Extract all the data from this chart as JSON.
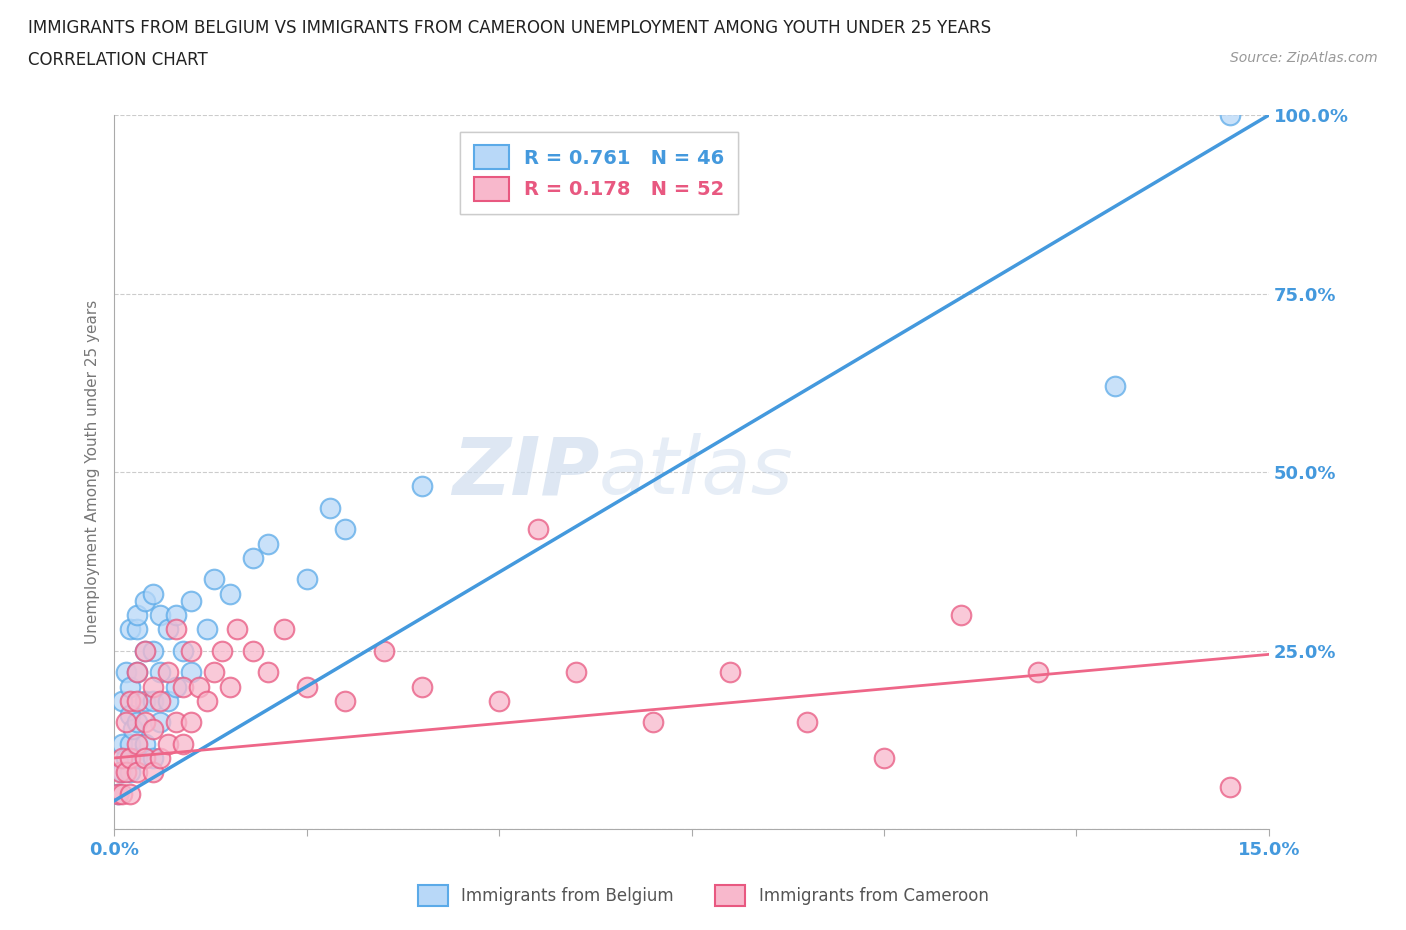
{
  "title_line1": "IMMIGRANTS FROM BELGIUM VS IMMIGRANTS FROM CAMEROON UNEMPLOYMENT AMONG YOUTH UNDER 25 YEARS",
  "title_line2": "CORRELATION CHART",
  "source_text": "Source: ZipAtlas.com",
  "ylabel": "Unemployment Among Youth under 25 years",
  "xlim": [
    0.0,
    0.15
  ],
  "ylim": [
    0.0,
    1.0
  ],
  "xticks": [
    0.0,
    0.025,
    0.05,
    0.075,
    0.1,
    0.125,
    0.15
  ],
  "xtick_labels": [
    "0.0%",
    "",
    "",
    "",
    "",
    "",
    "15.0%"
  ],
  "yticks": [
    0.0,
    0.25,
    0.5,
    0.75,
    1.0
  ],
  "ytick_labels": [
    "",
    "25.0%",
    "50.0%",
    "75.0%",
    "100.0%"
  ],
  "belgium_fill_color": "#b8d8f8",
  "cameroon_fill_color": "#f8b8cc",
  "belgium_edge_color": "#5baae8",
  "cameroon_edge_color": "#e85880",
  "belgium_line_color": "#4499dd",
  "cameroon_line_color": "#ee6688",
  "belgium_R": 0.761,
  "belgium_N": 46,
  "cameroon_R": 0.178,
  "cameroon_N": 52,
  "watermark_part1": "ZIP",
  "watermark_part2": "atlas",
  "legend_label_belgium": "Immigrants from Belgium",
  "legend_label_cameroon": "Immigrants from Cameroon",
  "belgium_line_x0": 0.0,
  "belgium_line_y0": 0.04,
  "belgium_line_x1": 0.15,
  "belgium_line_y1": 1.0,
  "cameroon_line_x0": 0.0,
  "cameroon_line_y0": 0.1,
  "cameroon_line_x1": 0.15,
  "cameroon_line_y1": 0.245,
  "belgium_scatter_x": [
    0.0005,
    0.001,
    0.001,
    0.001,
    0.0015,
    0.0015,
    0.002,
    0.002,
    0.002,
    0.002,
    0.002,
    0.0025,
    0.003,
    0.003,
    0.003,
    0.003,
    0.003,
    0.004,
    0.004,
    0.004,
    0.004,
    0.005,
    0.005,
    0.005,
    0.005,
    0.006,
    0.006,
    0.006,
    0.007,
    0.007,
    0.008,
    0.008,
    0.009,
    0.01,
    0.01,
    0.012,
    0.013,
    0.015,
    0.018,
    0.02,
    0.025,
    0.028,
    0.03,
    0.04,
    0.13,
    0.145
  ],
  "belgium_scatter_y": [
    0.05,
    0.08,
    0.12,
    0.18,
    0.1,
    0.22,
    0.08,
    0.12,
    0.16,
    0.2,
    0.28,
    0.14,
    0.1,
    0.15,
    0.22,
    0.28,
    0.3,
    0.12,
    0.18,
    0.25,
    0.32,
    0.1,
    0.18,
    0.25,
    0.33,
    0.15,
    0.22,
    0.3,
    0.18,
    0.28,
    0.2,
    0.3,
    0.25,
    0.22,
    0.32,
    0.28,
    0.35,
    0.33,
    0.38,
    0.4,
    0.35,
    0.45,
    0.42,
    0.48,
    0.62,
    1.0
  ],
  "cameroon_scatter_x": [
    0.0005,
    0.0008,
    0.001,
    0.001,
    0.0015,
    0.0015,
    0.002,
    0.002,
    0.002,
    0.003,
    0.003,
    0.003,
    0.003,
    0.004,
    0.004,
    0.004,
    0.005,
    0.005,
    0.005,
    0.006,
    0.006,
    0.007,
    0.007,
    0.008,
    0.008,
    0.009,
    0.009,
    0.01,
    0.01,
    0.011,
    0.012,
    0.013,
    0.014,
    0.015,
    0.016,
    0.018,
    0.02,
    0.022,
    0.025,
    0.03,
    0.035,
    0.04,
    0.05,
    0.055,
    0.06,
    0.07,
    0.08,
    0.09,
    0.1,
    0.11,
    0.12,
    0.145
  ],
  "cameroon_scatter_y": [
    0.05,
    0.08,
    0.05,
    0.1,
    0.08,
    0.15,
    0.05,
    0.1,
    0.18,
    0.08,
    0.12,
    0.18,
    0.22,
    0.1,
    0.15,
    0.25,
    0.08,
    0.14,
    0.2,
    0.1,
    0.18,
    0.12,
    0.22,
    0.15,
    0.28,
    0.12,
    0.2,
    0.15,
    0.25,
    0.2,
    0.18,
    0.22,
    0.25,
    0.2,
    0.28,
    0.25,
    0.22,
    0.28,
    0.2,
    0.18,
    0.25,
    0.2,
    0.18,
    0.42,
    0.22,
    0.15,
    0.22,
    0.15,
    0.1,
    0.3,
    0.22,
    0.06
  ]
}
